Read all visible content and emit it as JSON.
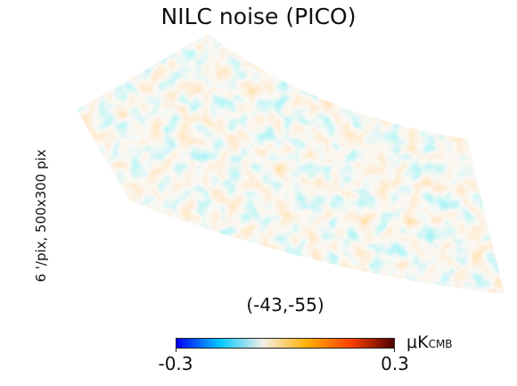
{
  "title": "NILC noise (PICO)",
  "side_label": "6 '/pix,   500x300 pix",
  "coordinates": "(-43,-55)",
  "colorbar": {
    "min_label": "-0.3",
    "max_label": "0.3",
    "unit_prefix": "μK",
    "unit_subscript": "CMB",
    "colormap_stops": [
      "#0000ff",
      "#00c8ff",
      "#f5efe6",
      "#ffb000",
      "#ff4000",
      "#500000"
    ]
  }
}
